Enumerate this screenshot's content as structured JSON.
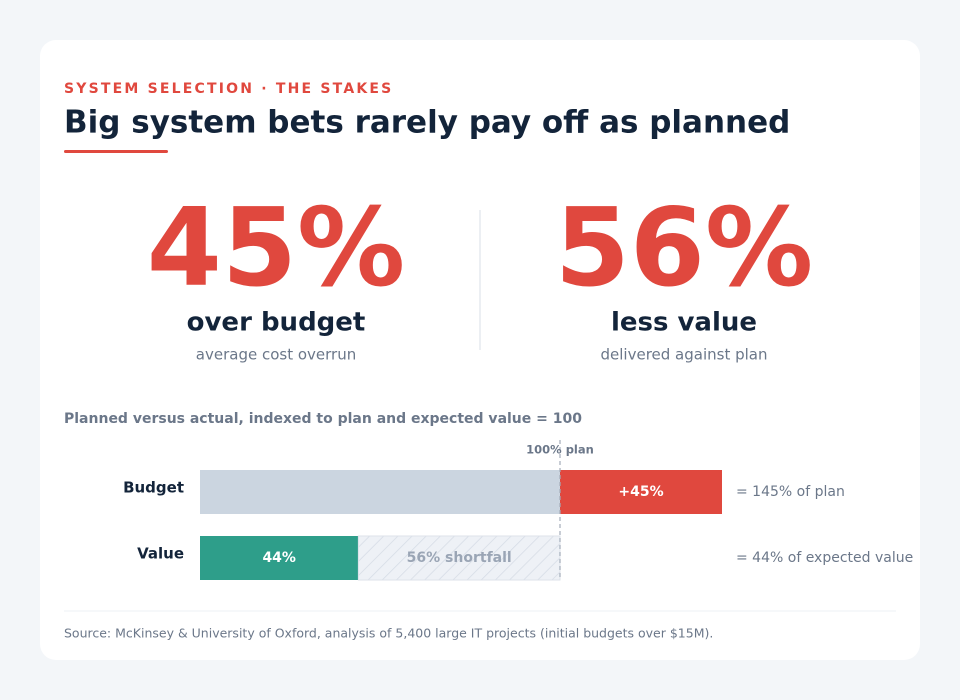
{
  "header": {
    "eyebrow": "SYSTEM SELECTION · THE STAKES",
    "title": "Big system bets rarely pay off as planned"
  },
  "stats": [
    {
      "figure": "45%",
      "label": "over budget",
      "sublabel": "average cost overrun"
    },
    {
      "figure": "56%",
      "label": "less value",
      "sublabel": "delivered against plan"
    }
  ],
  "chart_data": {
    "type": "bar",
    "orientation": "horizontal",
    "stacked": true,
    "title": "Planned versus actual, indexed to plan and expected value = 100",
    "xlim": [
      0,
      200
    ],
    "reference": {
      "value": 100,
      "label": "100% plan"
    },
    "categories": [
      "Budget",
      "Value"
    ],
    "bars": [
      {
        "segments": [
          {
            "value": 100,
            "color": "#cbd5e0"
          },
          {
            "value": 45,
            "value_label": "+45%",
            "color": "#e0483e"
          }
        ],
        "note": "= 145% of plan"
      },
      {
        "segments": [
          {
            "value": 44,
            "value_label": "44%",
            "color": "#2e9e8a"
          },
          {
            "value": 56,
            "value_label": "56% shortfall",
            "color": "#eef1f6",
            "hatched": true
          }
        ],
        "note": "= 44% of expected value"
      }
    ]
  },
  "source": "Source: McKinsey & University of Oxford, analysis of 5,400 large IT projects (initial budgets over $15M)."
}
